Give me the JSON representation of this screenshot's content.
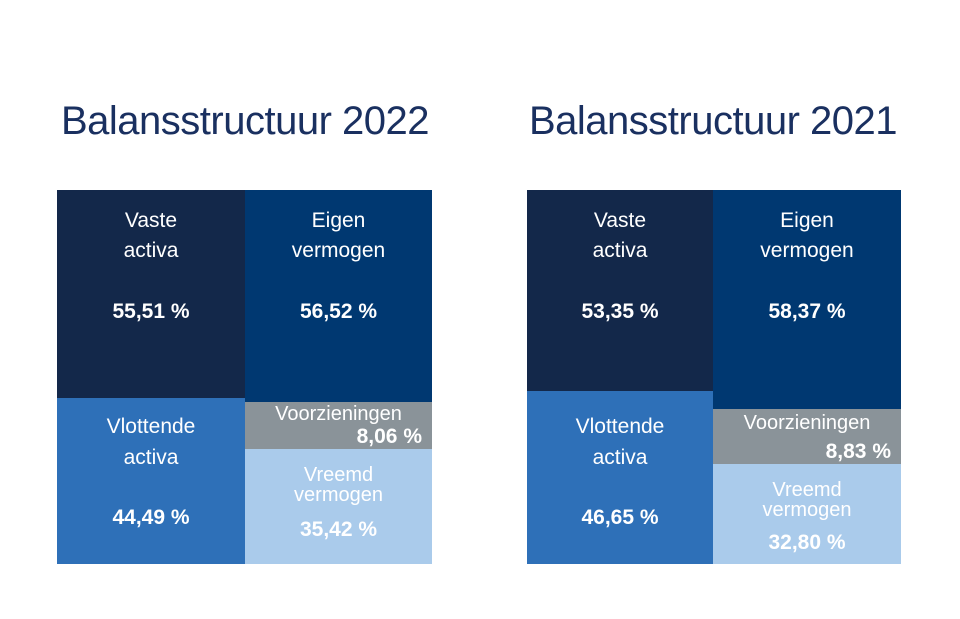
{
  "colors": {
    "vaste_activa": "#13284a",
    "vlottende_activa": "#2e70b8",
    "eigen_vermogen": "#003871",
    "voorzieningen": "#8a9399",
    "vreemd_vermogen": "#aacbeb"
  },
  "chart_data": [
    {
      "type": "table",
      "title": "Balansstructuur 2022",
      "activa": [
        {
          "label_line1": "Vaste",
          "label_line2": "activa",
          "value": 55.51,
          "value_text": "55,51 %"
        },
        {
          "label_line1": "Vlottende",
          "label_line2": "activa",
          "value": 44.49,
          "value_text": "44,49 %"
        }
      ],
      "passiva": [
        {
          "label_line1": "Eigen",
          "label_line2": "vermogen",
          "value": 56.52,
          "value_text": "56,52 %"
        },
        {
          "label_line1": "Voorzieningen",
          "label_line2": "",
          "value": 8.06,
          "value_text": "8,06 %"
        },
        {
          "label_line1": "Vreemd",
          "label_line2": "vermogen",
          "value": 35.42,
          "value_text": "35,42 %"
        }
      ]
    },
    {
      "type": "table",
      "title": "Balansstructuur 2021",
      "activa": [
        {
          "label_line1": "Vaste",
          "label_line2": "activa",
          "value": 53.35,
          "value_text": "53,35 %"
        },
        {
          "label_line1": "Vlottende",
          "label_line2": "activa",
          "value": 46.65,
          "value_text": "46,65 %"
        }
      ],
      "passiva": [
        {
          "label_line1": "Eigen",
          "label_line2": "vermogen",
          "value": 58.37,
          "value_text": "58,37 %"
        },
        {
          "label_line1": "Voorzieningen",
          "label_line2": "",
          "value": 8.83,
          "value_text": "8,83 %"
        },
        {
          "label_line1": "Vreemd",
          "label_line2": "vermogen",
          "value": 32.8,
          "value_text": "32,80 %"
        }
      ]
    }
  ]
}
